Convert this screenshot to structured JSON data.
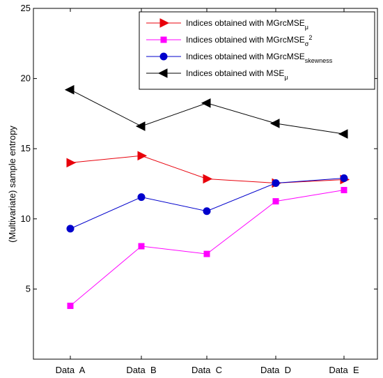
{
  "chart_data": {
    "type": "line",
    "categories": [
      "Data  A",
      "Data  B",
      "Data  C",
      "Data  D",
      "Data  E"
    ],
    "ylabel": "(Multivariate) sample entropy",
    "xlabel": "",
    "title": "",
    "ylim": [
      0,
      25
    ],
    "yticks": [
      5,
      10,
      15,
      20,
      25
    ],
    "grid": false,
    "legend_position": "top-right",
    "series": [
      {
        "name_base": "Indices obtained with MGrcMSE",
        "name_sub": "μ",
        "name_sup": "",
        "color": "#e8000b",
        "marker": "triangle-right",
        "values": [
          14.0,
          14.5,
          12.85,
          12.55,
          12.8
        ]
      },
      {
        "name_base": "Indices obtained with MGrcMSE",
        "name_sub": "σ",
        "name_sup": "2",
        "color": "#ff00ff",
        "marker": "square",
        "values": [
          3.8,
          8.05,
          7.5,
          11.25,
          12.05
        ]
      },
      {
        "name_base": "Indices obtained with MGrcMSE",
        "name_sub": "skewness",
        "name_sup": "",
        "color": "#0000cc",
        "marker": "circle",
        "values": [
          9.3,
          11.55,
          10.55,
          12.55,
          12.9
        ]
      },
      {
        "name_base": "Indices obtained with MSE",
        "name_sub": "μ",
        "name_sup": "",
        "color": "#000000",
        "marker": "triangle-left",
        "values": [
          19.2,
          16.6,
          18.25,
          16.8,
          16.05
        ]
      }
    ]
  }
}
